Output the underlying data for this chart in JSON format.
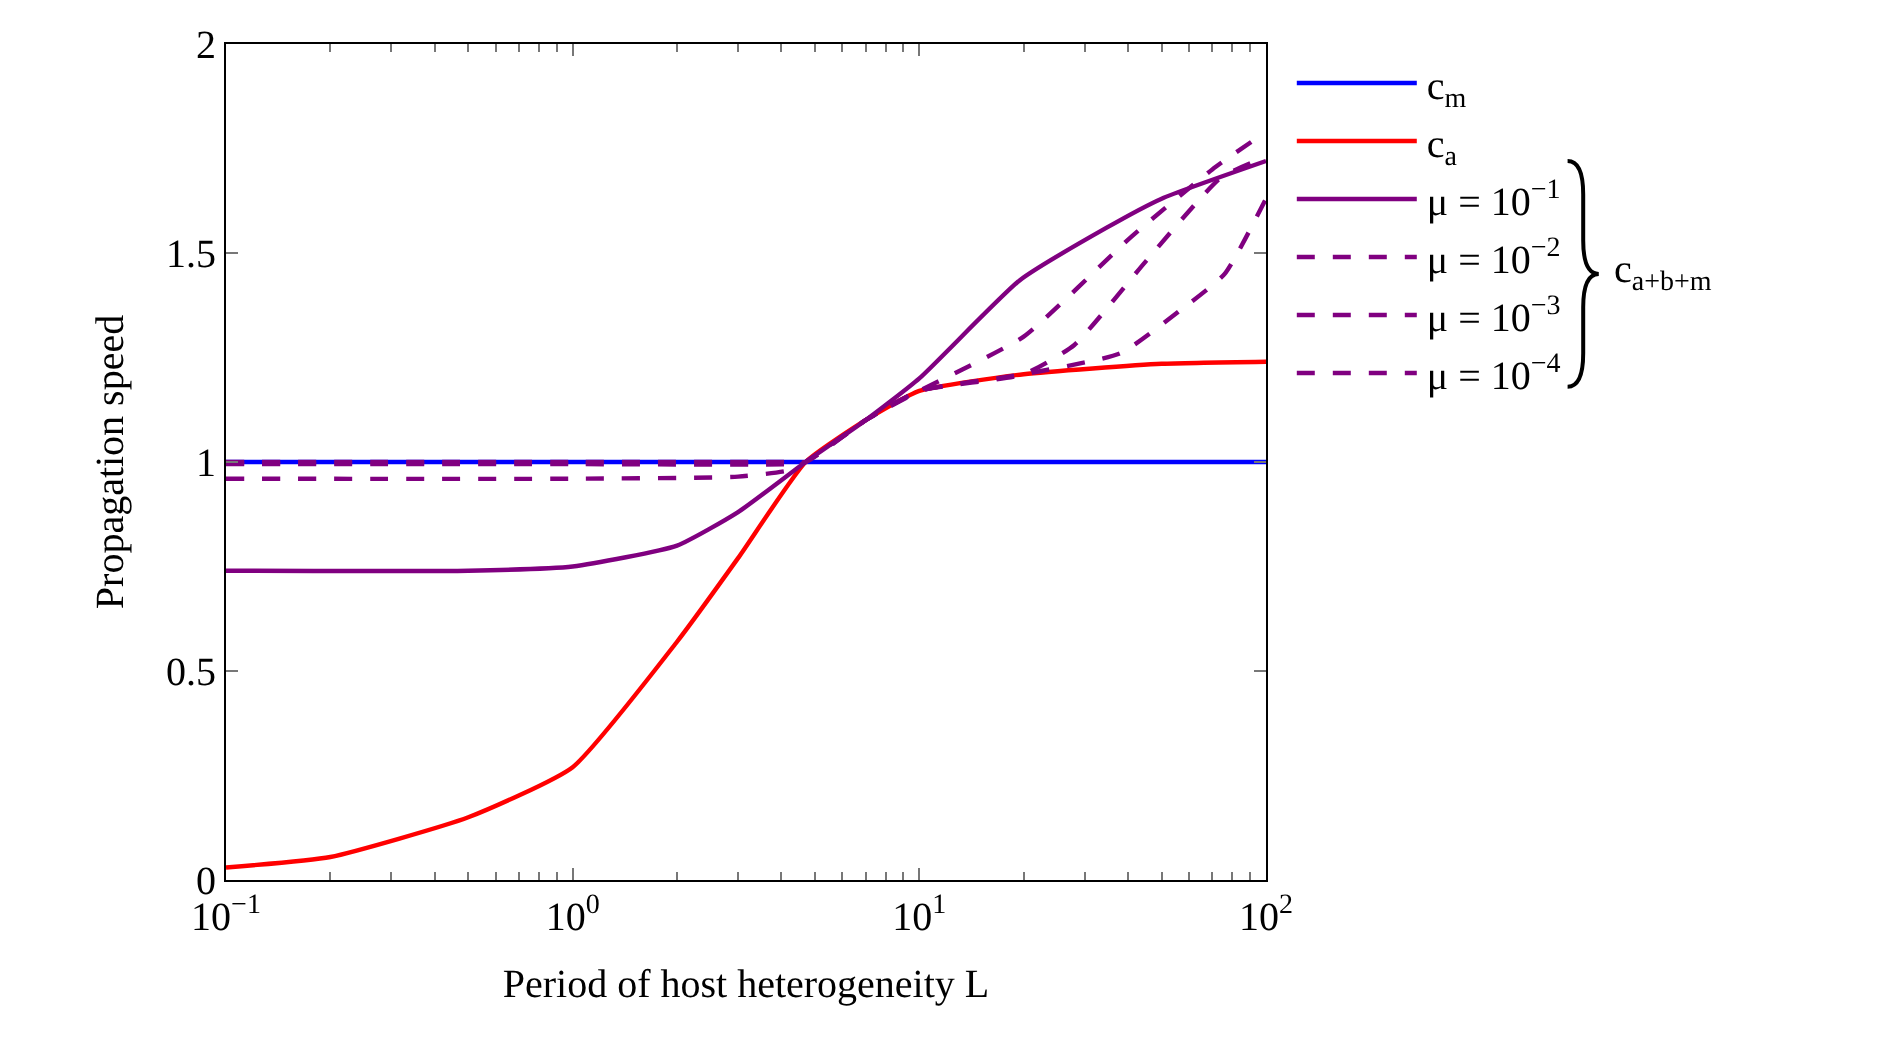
{
  "chart_data": {
    "type": "line",
    "xlabel": "Period of host heterogeneity L",
    "ylabel": "Propagation speed",
    "log": "x",
    "xlim": [
      0.1,
      100
    ],
    "ylim": [
      0,
      2
    ],
    "legend": "right",
    "marker": "none",
    "xticks": [
      {
        "value": 0.1,
        "label": "10$^{−1}$"
      },
      {
        "value": 1,
        "label": "10$^{0}$"
      },
      {
        "value": 10,
        "label": "10$^{1}$"
      },
      {
        "value": 100,
        "label": "10$^{2}$"
      }
    ],
    "yticks": [
      0,
      0.5,
      1,
      1.5,
      2
    ],
    "annotations": [
      "c$_{a+b+m}$"
    ],
    "series": [
      {
        "name": "c$_{m}$",
        "color": "#0000ff",
        "line_style": "solid",
        "x": [
          0.1,
          100
        ],
        "values": [
          1,
          1
        ]
      },
      {
        "name": "c$_{a}$",
        "color": "#ff0000",
        "line_style": "solid",
        "x": [
          0.1,
          0.2,
          0.5,
          1,
          2,
          3,
          4.7,
          7,
          10,
          20,
          50,
          100
        ],
        "values": [
          0.03,
          0.055,
          0.15,
          0.27,
          0.57,
          0.77,
          1.0,
          1.1,
          1.17,
          1.21,
          1.235,
          1.24
        ]
      },
      {
        "name": "μ = 10$^{−1}$",
        "color": "#800080",
        "line_style": "solid",
        "x": [
          0.1,
          0.5,
          1,
          2,
          3,
          4.7,
          7,
          10,
          19.5,
          34.6,
          50,
          100
        ],
        "values": [
          0.74,
          0.74,
          0.75,
          0.8,
          0.88,
          1.0,
          1.1,
          1.2,
          1.435,
          1.56,
          1.63,
          1.72
        ]
      },
      {
        "name": "μ = 10$^{−2}$",
        "color": "#800080",
        "line_style": "dashed",
        "x": [
          0.1,
          1,
          3,
          4.2,
          4.7,
          7,
          10,
          20,
          41,
          70,
          100
        ],
        "values": [
          0.96,
          0.96,
          0.965,
          0.98,
          1.0,
          1.1,
          1.17,
          1.3,
          1.54,
          1.7,
          1.79
        ]
      },
      {
        "name": "μ = 10$^{−3}$",
        "color": "#800080",
        "line_style": "dashed",
        "x": [
          0.1,
          1,
          4.2,
          4.7,
          7,
          10,
          20,
          28,
          45,
          74,
          100
        ],
        "values": [
          0.995,
          0.995,
          0.995,
          1.0,
          1.1,
          1.17,
          1.21,
          1.28,
          1.48,
          1.68,
          1.73
        ]
      },
      {
        "name": "μ = 10$^{−4}$",
        "color": "#800080",
        "line_style": "dashed",
        "x": [
          0.1,
          1,
          4.2,
          4.7,
          7,
          10,
          20,
          38,
          56,
          76,
          100
        ],
        "values": [
          1.0,
          1.0,
          1.0,
          1.0,
          1.1,
          1.17,
          1.21,
          1.26,
          1.36,
          1.45,
          1.63
        ]
      }
    ]
  }
}
